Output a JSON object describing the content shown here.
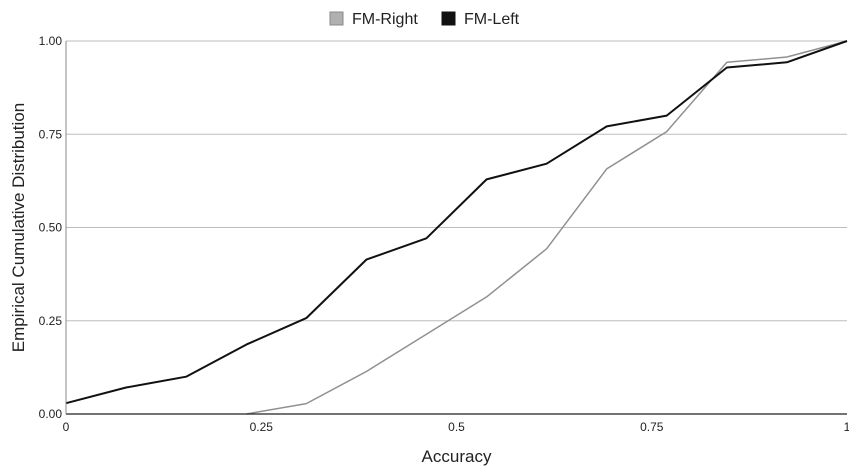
{
  "chart_data": {
    "type": "line",
    "xlabel": "Accuracy",
    "ylabel": "Empirical Cumulative Distribution",
    "xlim": [
      0,
      1
    ],
    "ylim": [
      0,
      1
    ],
    "x_ticks": [
      "0",
      "0.25",
      "0.5",
      "0.75",
      "1"
    ],
    "y_ticks": [
      "0.00",
      "0.25",
      "0.50",
      "0.75",
      "1.00"
    ],
    "grid": true,
    "legend": {
      "placement": "top-center"
    },
    "series": [
      {
        "name": "FM-Right",
        "color": "#909090",
        "legend_color": "#b0b0b0",
        "points": [
          [
            0.2308,
            0.0
          ],
          [
            0.3077,
            0.028
          ],
          [
            0.3846,
            0.114
          ],
          [
            0.4615,
            0.214
          ],
          [
            0.5385,
            0.314
          ],
          [
            0.6154,
            0.443
          ],
          [
            0.6923,
            0.657
          ],
          [
            0.7692,
            0.757
          ],
          [
            0.8462,
            0.943
          ],
          [
            0.9231,
            0.957
          ],
          [
            1.0,
            1.0
          ]
        ]
      },
      {
        "name": "FM-Left",
        "color": "#111111",
        "legend_color": "#111111",
        "points": [
          [
            0.0,
            0.029
          ],
          [
            0.0769,
            0.071
          ],
          [
            0.1538,
            0.1
          ],
          [
            0.2308,
            0.186
          ],
          [
            0.3077,
            0.257
          ],
          [
            0.3846,
            0.414
          ],
          [
            0.4615,
            0.471
          ],
          [
            0.5385,
            0.629
          ],
          [
            0.6154,
            0.671
          ],
          [
            0.6923,
            0.771
          ],
          [
            0.7692,
            0.8
          ],
          [
            0.8462,
            0.929
          ],
          [
            0.9231,
            0.943
          ],
          [
            1.0,
            1.0
          ]
        ]
      }
    ]
  }
}
